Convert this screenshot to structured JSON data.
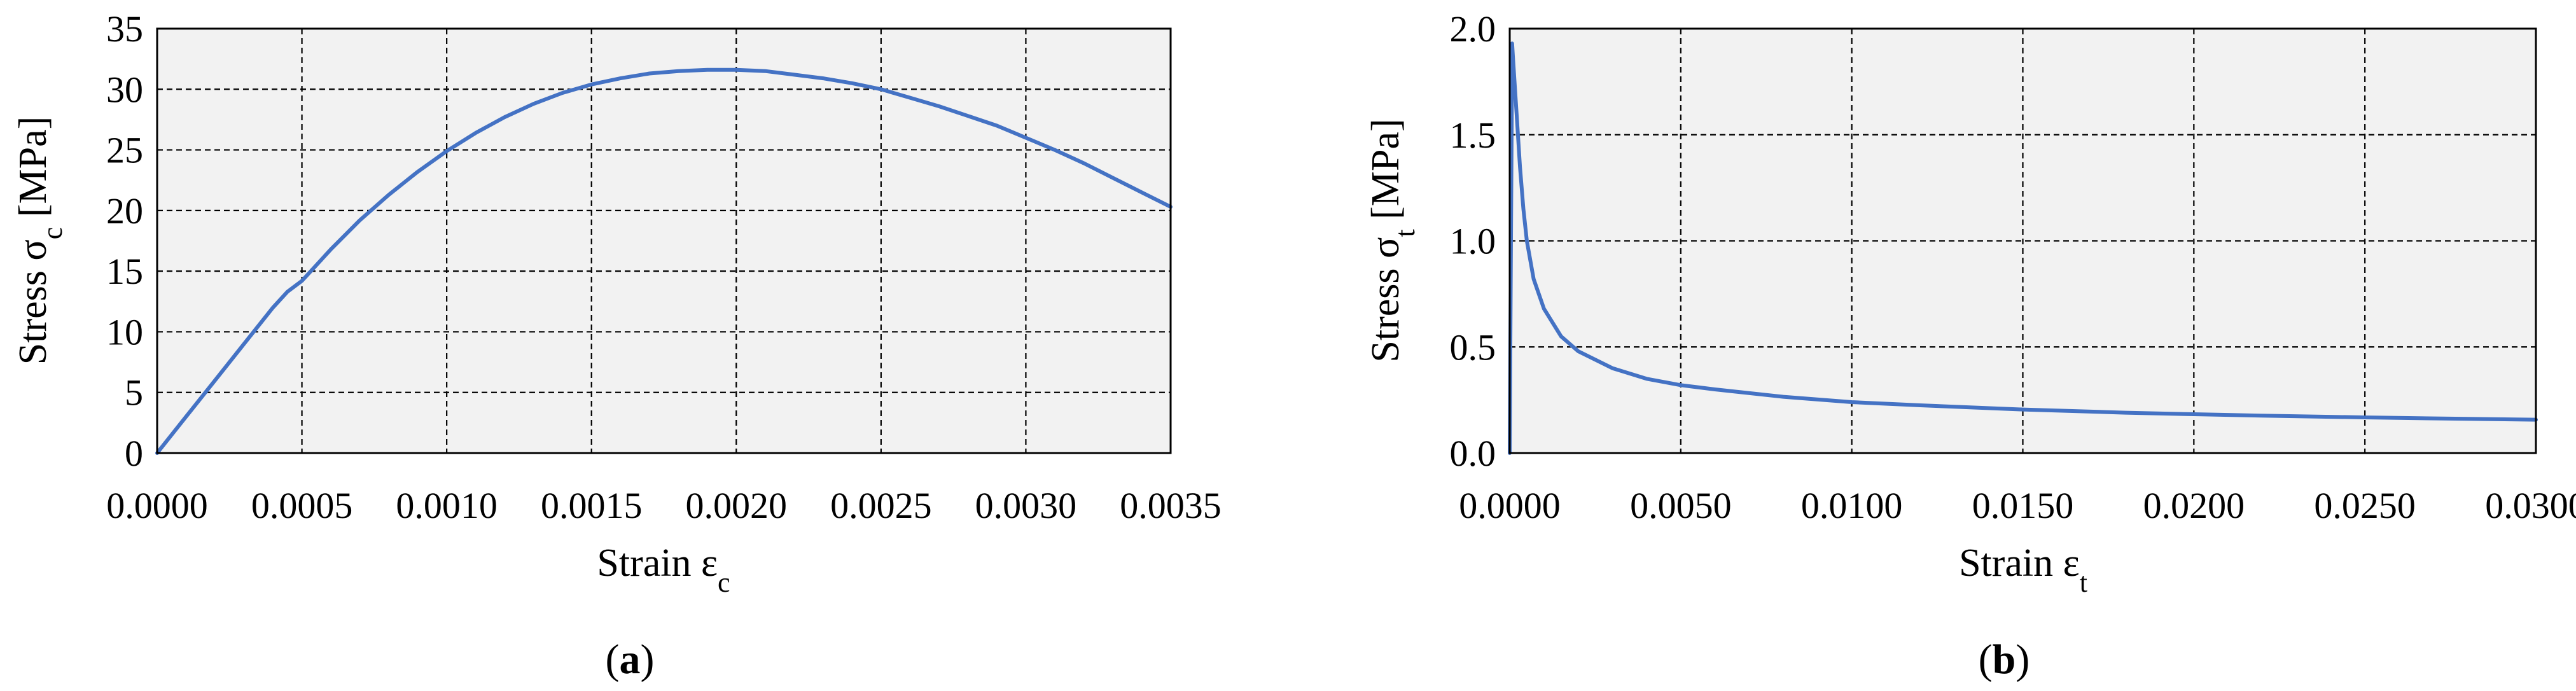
{
  "chart_data": [
    {
      "type": "line",
      "panel": "(a)",
      "xlabel": "Strain εc",
      "ylabel": "Stress σc [MPa]",
      "xlim": [
        0,
        0.0035
      ],
      "ylim": [
        0,
        35
      ],
      "x_ticks": [
        "0.0000",
        "0.0005",
        "0.0010",
        "0.0015",
        "0.0020",
        "0.0025",
        "0.0030",
        "0.0035"
      ],
      "y_ticks": [
        "0",
        "5",
        "10",
        "15",
        "20",
        "25",
        "30",
        "35"
      ],
      "grid": true,
      "series": [
        {
          "color": "#4472C4",
          "x": [
            0,
            0.0001,
            0.0002,
            0.0003,
            0.0004,
            0.00045,
            0.0005,
            0.0006,
            0.0007,
            0.0008,
            0.0009,
            0.001,
            0.0011,
            0.0012,
            0.0013,
            0.0014,
            0.0015,
            0.0016,
            0.0017,
            0.0018,
            0.0019,
            0.002,
            0.0021,
            0.0022,
            0.0023,
            0.0024,
            0.0025,
            0.0026,
            0.0027,
            0.0028,
            0.0029,
            0.003,
            0.0031,
            0.0032,
            0.0033,
            0.0034,
            0.0035
          ],
          "y": [
            0,
            3.0,
            6.0,
            9.0,
            12.0,
            13.3,
            14.2,
            16.8,
            19.2,
            21.3,
            23.2,
            24.9,
            26.4,
            27.7,
            28.8,
            29.7,
            30.4,
            30.9,
            31.3,
            31.5,
            31.6,
            31.6,
            31.5,
            31.2,
            30.9,
            30.5,
            30.0,
            29.3,
            28.6,
            27.8,
            27.0,
            26.0,
            25.0,
            23.9,
            22.7,
            21.5,
            20.3
          ]
        }
      ]
    },
    {
      "type": "line",
      "panel": "(b)",
      "xlabel": "Strain εt",
      "ylabel": "Stress σt [MPa]",
      "xlim": [
        0,
        0.03
      ],
      "ylim": [
        0,
        2.0
      ],
      "x_ticks": [
        "0.0000",
        "0.0050",
        "0.0100",
        "0.0150",
        "0.0200",
        "0.0250",
        "0.0300"
      ],
      "y_ticks": [
        "0.0",
        "0.5",
        "1.0",
        "1.5",
        "2.0"
      ],
      "grid": true,
      "series": [
        {
          "color": "#4472C4",
          "x": [
            0,
            7e-05,
            0.0001,
            0.0002,
            0.0003,
            0.0004,
            0.0005,
            0.0007,
            0.001,
            0.0015,
            0.002,
            0.003,
            0.004,
            0.005,
            0.006,
            0.008,
            0.01,
            0.012,
            0.015,
            0.018,
            0.02,
            0.022,
            0.025,
            0.028,
            0.03
          ],
          "y": [
            0,
            1.93,
            1.85,
            1.6,
            1.35,
            1.15,
            1.0,
            0.82,
            0.68,
            0.55,
            0.48,
            0.4,
            0.35,
            0.32,
            0.3,
            0.265,
            0.24,
            0.225,
            0.205,
            0.19,
            0.183,
            0.176,
            0.168,
            0.161,
            0.157
          ]
        }
      ]
    }
  ]
}
